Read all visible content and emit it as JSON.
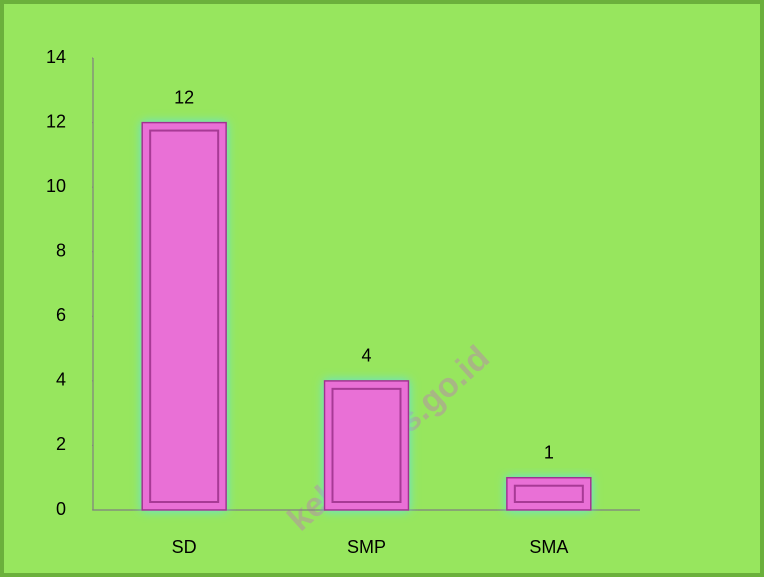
{
  "chart_data": {
    "type": "bar",
    "categories": [
      "SD",
      "SMP",
      "SMA"
    ],
    "values": [
      12,
      4,
      1
    ],
    "color": "#e96fd6",
    "ylim": [
      0,
      14
    ],
    "yticks": [
      0,
      2,
      4,
      6,
      8,
      10,
      12,
      14
    ],
    "grid": false,
    "watermark": "kekab.bps.go.id"
  }
}
